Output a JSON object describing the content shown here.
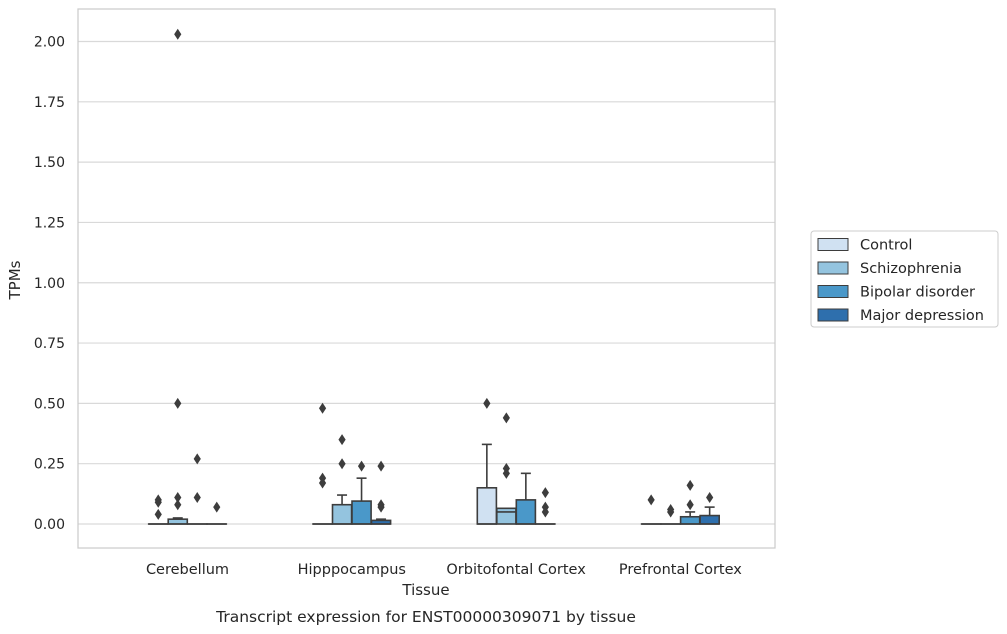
{
  "chart_data": {
    "type": "box",
    "title": "",
    "caption": "Transcript expression for ENST00000309071 by tissue",
    "xlabel": "Tissue",
    "ylabel": "TPMs",
    "ylim": [
      -0.1,
      2.13
    ],
    "yticks": [
      "0.00",
      "0.25",
      "0.50",
      "0.75",
      "1.00",
      "1.25",
      "1.50",
      "1.75",
      "2.00"
    ],
    "ytick_values": [
      0,
      0.25,
      0.5,
      0.75,
      1.0,
      1.25,
      1.5,
      1.75,
      2.0
    ],
    "grid": true,
    "legend_position": "right",
    "categories": [
      "Cerebellum",
      "Hipppocampus",
      "Orbitofontal Cortex",
      "Prefrontal Cortex"
    ],
    "series": [
      {
        "name": "Control",
        "color": "#d0e1f2",
        "boxes": [
          {
            "q1": 0,
            "median": 0,
            "q3": 0,
            "whisker_low": 0,
            "whisker_high": 0,
            "outliers": [
              0.1,
              0.09,
              0.04
            ]
          },
          {
            "q1": 0,
            "median": 0,
            "q3": 0,
            "whisker_low": 0,
            "whisker_high": 0,
            "outliers": [
              0.48,
              0.19,
              0.17
            ]
          },
          {
            "q1": 0,
            "median": 0,
            "q3": 0.15,
            "whisker_low": 0,
            "whisker_high": 0.33,
            "outliers": [
              0.5
            ]
          },
          {
            "q1": 0,
            "median": 0,
            "q3": 0,
            "whisker_low": 0,
            "whisker_high": 0,
            "outliers": [
              0.1
            ]
          }
        ]
      },
      {
        "name": "Schizophrenia",
        "color": "#94c4df",
        "boxes": [
          {
            "q1": 0,
            "median": 0,
            "q3": 0.02,
            "whisker_low": 0,
            "whisker_high": 0.025,
            "outliers": [
              2.03,
              0.5,
              0.11,
              0.08
            ]
          },
          {
            "q1": 0,
            "median": 0,
            "q3": 0.08,
            "whisker_low": 0,
            "whisker_high": 0.12,
            "outliers": [
              0.35,
              0.25
            ]
          },
          {
            "q1": 0,
            "median": 0.05,
            "q3": 0.065,
            "whisker_low": 0,
            "whisker_high": 0.065,
            "outliers": [
              0.44,
              0.23,
              0.21
            ]
          },
          {
            "q1": 0,
            "median": 0,
            "q3": 0,
            "whisker_low": 0,
            "whisker_high": 0,
            "outliers": [
              0.06,
              0.05
            ]
          }
        ]
      },
      {
        "name": "Bipolar disorder",
        "color": "#4a98c9",
        "boxes": [
          {
            "q1": 0,
            "median": 0,
            "q3": 0,
            "whisker_low": 0,
            "whisker_high": 0,
            "outliers": [
              0.27,
              0.11
            ]
          },
          {
            "q1": 0,
            "median": 0,
            "q3": 0.095,
            "whisker_low": 0,
            "whisker_high": 0.19,
            "outliers": [
              0.24
            ]
          },
          {
            "q1": 0,
            "median": 0,
            "q3": 0.1,
            "whisker_low": 0,
            "whisker_high": 0.21,
            "outliers": []
          },
          {
            "q1": 0,
            "median": 0,
            "q3": 0.03,
            "whisker_low": 0,
            "whisker_high": 0.05,
            "outliers": [
              0.16,
              0.08
            ]
          }
        ]
      },
      {
        "name": "Major depression",
        "color": "#2e6fad",
        "boxes": [
          {
            "q1": 0,
            "median": 0,
            "q3": 0,
            "whisker_low": 0,
            "whisker_high": 0,
            "outliers": [
              0.07
            ]
          },
          {
            "q1": 0,
            "median": 0,
            "q3": 0.015,
            "whisker_low": 0,
            "whisker_high": 0.02,
            "outliers": [
              0.24,
              0.08,
              0.07
            ]
          },
          {
            "q1": 0,
            "median": 0,
            "q3": 0,
            "whisker_low": 0,
            "whisker_high": 0,
            "outliers": [
              0.13,
              0.07,
              0.05
            ]
          },
          {
            "q1": 0,
            "median": 0,
            "q3": 0.035,
            "whisker_low": 0,
            "whisker_high": 0.07,
            "outliers": [
              0.11
            ]
          }
        ]
      }
    ]
  }
}
